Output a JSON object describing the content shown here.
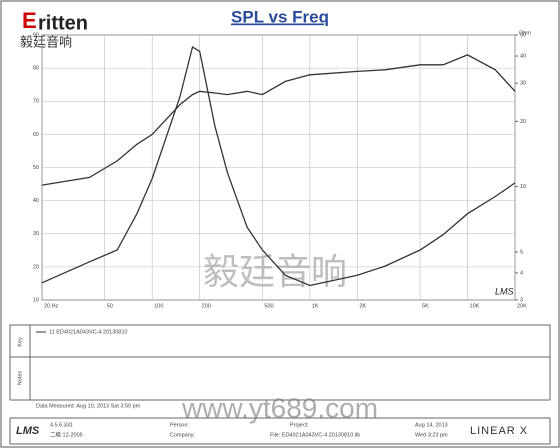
{
  "header": {
    "logo": "ritten",
    "logo_initial": "E",
    "logo_cn": "毅廷音响"
  },
  "chart_data": {
    "type": "line",
    "title": "SPL vs Freq",
    "x": [
      20,
      40,
      60,
      80,
      100,
      150,
      180,
      200,
      250,
      300,
      400,
      500,
      700,
      1000,
      2000,
      3000,
      5000,
      7000,
      10000,
      15000,
      20000
    ],
    "series": [
      {
        "name": "11 ED4021A043VC-4  20130810",
        "color": "#333333",
        "values": [
          44.7,
          47,
          52,
          57,
          60,
          69,
          72,
          73,
          72.5,
          72,
          73,
          72,
          76,
          78,
          79,
          79.5,
          81,
          81,
          84,
          79.5,
          73
        ]
      },
      {
        "color": "#333333",
        "axis": "y2",
        "values": [
          3.6,
          4.5,
          5.1,
          7.5,
          10.9,
          26,
          44,
          42,
          19,
          11.6,
          6.5,
          5.1,
          3.9,
          3.5,
          3.9,
          4.3,
          5.1,
          6,
          7.5,
          9,
          10.4
        ]
      }
    ],
    "xlim": [
      20,
      20000
    ],
    "xlog": true,
    "xticks": [
      {
        "value": 20,
        "label": "20 Hz"
      },
      50,
      100,
      200,
      500,
      {
        "value": 1000,
        "label": "1K"
      },
      {
        "value": 2000,
        "label": "2K"
      },
      {
        "value": 5000,
        "label": "5K"
      },
      {
        "value": 10000,
        "label": "10K"
      },
      {
        "value": 20000,
        "label": "20K"
      }
    ],
    "ylim": [
      10,
      90
    ],
    "yticks": [
      10,
      20,
      30,
      40,
      50,
      60,
      70,
      80,
      90
    ],
    "y2lim": [
      3,
      50
    ],
    "y2log": true,
    "y2ticks": [
      3,
      4,
      5,
      10,
      20,
      30,
      40,
      50
    ],
    "y2_label": "Ohm",
    "grid": true
  },
  "panel": {
    "key_label": "Key",
    "notes_label": "Notes",
    "measured": "Data Measured: Aug 10, 2013  Sat 3:50 pm"
  },
  "watermark": {
    "cn": "毅廷音响",
    "url": "www.yt689.com",
    "lms": "LMS"
  },
  "footer": {
    "brand": "LMS",
    "version": "4.5.6.331",
    "serial": "二級 12-2005",
    "person": "Person:",
    "company": "Company:",
    "project": "Project:",
    "file": "File: ED4021A043VC-4  20130810.lib",
    "date": "Aug 14, 2013",
    "time": "Wed 3:23 pm",
    "maker": "LINEAR X"
  }
}
